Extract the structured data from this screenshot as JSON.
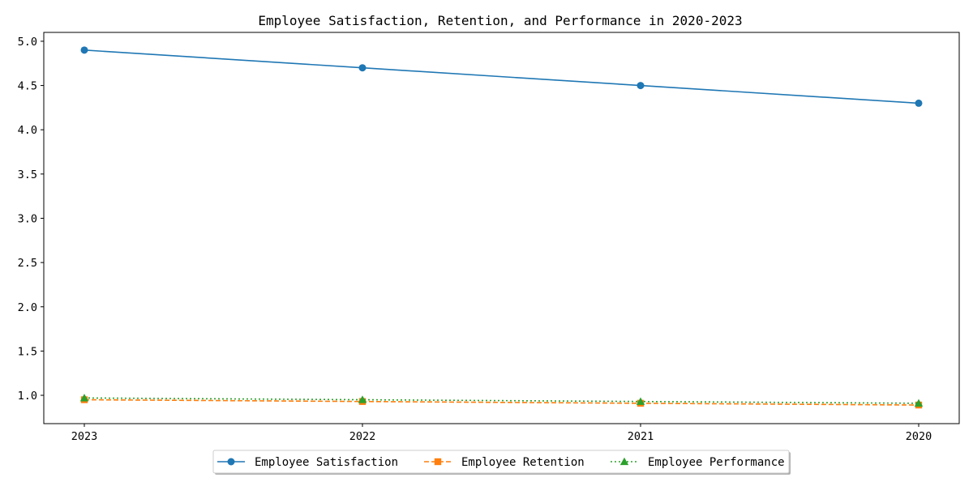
{
  "chart_data": {
    "type": "line",
    "title": "Employee Satisfaction, Retention, and Performance in 2020-2023",
    "xlabel": "",
    "ylabel": "",
    "categories": [
      "2023",
      "2022",
      "2021",
      "2020"
    ],
    "ylim": [
      0.68,
      5.1
    ],
    "yticks": [
      "1.0",
      "1.5",
      "2.0",
      "2.5",
      "3.0",
      "3.5",
      "4.0",
      "4.5",
      "5.0"
    ],
    "grid": false,
    "legend_position": "bottom-center",
    "series": [
      {
        "name": "Employee Satisfaction",
        "values": [
          4.9,
          4.7,
          4.5,
          4.3
        ],
        "color": "#1f77b4",
        "marker": "circle",
        "linestyle": "solid"
      },
      {
        "name": "Employee Retention",
        "values": [
          0.95,
          0.93,
          0.91,
          0.89
        ],
        "color": "#ff7f0e",
        "marker": "square",
        "linestyle": "dashed"
      },
      {
        "name": "Employee Performance",
        "values": [
          0.97,
          0.95,
          0.93,
          0.91
        ],
        "color": "#2ca02c",
        "marker": "triangle",
        "linestyle": "dotted"
      }
    ]
  }
}
